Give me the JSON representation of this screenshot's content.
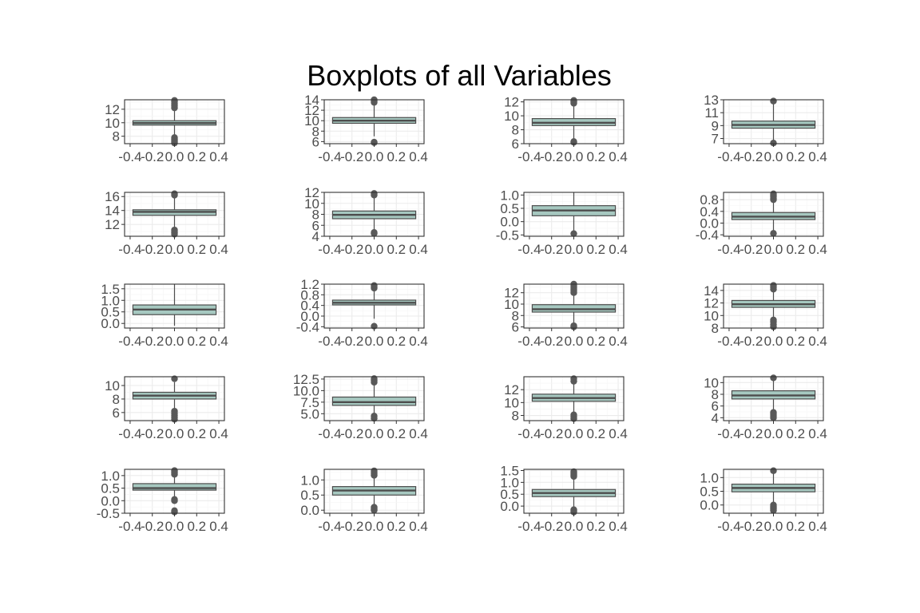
{
  "figure": {
    "title": "Boxplots of all Variables"
  },
  "style": {
    "box_fill": "#a6c8c0",
    "line_color": "#4d4d4d",
    "outlier_color": "#595959",
    "panel_border": "#333333",
    "grid_major": "#ebebeb",
    "grid_minor": "#f5f5f5",
    "tick_text": "#4d4d4d"
  },
  "chart_data": [
    {
      "type": "boxplot",
      "xticks": [
        "-0.4",
        "-0.2",
        "0.0",
        "0.2",
        "0.4"
      ],
      "ylim": [
        6.9,
        13.4
      ],
      "yticks": [
        "8",
        "10",
        "12"
      ],
      "box": {
        "whisker_low": 8.0,
        "q1": 9.65,
        "median": 9.95,
        "q3": 10.3,
        "whisker_high": 12.0
      },
      "outliers": [
        7.0,
        7.2,
        7.4,
        7.6,
        7.8,
        12.2,
        12.5,
        12.8,
        13.1,
        13.3
      ]
    },
    {
      "type": "boxplot",
      "xticks": [
        "-0.4",
        "-0.2",
        "0.0",
        "0.2",
        "0.4"
      ],
      "ylim": [
        5.6,
        14.0
      ],
      "yticks": [
        "6",
        "8",
        "10",
        "12",
        "14"
      ],
      "box": {
        "whisker_low": 7.0,
        "q1": 9.5,
        "median": 10.0,
        "q3": 10.6,
        "whisker_high": 13.0
      },
      "outliers": [
        5.8,
        5.9,
        13.5,
        13.8,
        14.0
      ]
    },
    {
      "type": "boxplot",
      "xticks": [
        "-0.4",
        "-0.2",
        "0.0",
        "0.2",
        "0.4"
      ],
      "ylim": [
        6.0,
        12.3
      ],
      "yticks": [
        "6",
        "8",
        "10",
        "12"
      ],
      "box": {
        "whisker_low": 6.5,
        "q1": 8.6,
        "median": 9.0,
        "q3": 9.6,
        "whisker_high": 11.5
      },
      "outliers": [
        6.2,
        6.3,
        11.8,
        12.0,
        12.2
      ]
    },
    {
      "type": "boxplot",
      "xticks": [
        "-0.4",
        "-0.2",
        "0.0",
        "0.2",
        "0.4"
      ],
      "ylim": [
        6.2,
        13.0
      ],
      "yticks": [
        "7",
        "9",
        "11",
        "13"
      ],
      "box": {
        "whisker_low": 6.6,
        "q1": 8.6,
        "median": 9.1,
        "q3": 9.7,
        "whisker_high": 12.6
      },
      "outliers": [
        6.3,
        12.8
      ]
    },
    {
      "type": "boxplot",
      "xticks": [
        "-0.4",
        "-0.2",
        "0.0",
        "0.2",
        "0.4"
      ],
      "ylim": [
        10.3,
        16.6
      ],
      "yticks": [
        "12",
        "14",
        "16"
      ],
      "box": {
        "whisker_low": 11.5,
        "q1": 13.3,
        "median": 13.8,
        "q3": 14.1,
        "whisker_high": 16.0
      },
      "outliers": [
        10.6,
        10.8,
        11.0,
        11.2,
        16.2,
        16.4
      ]
    },
    {
      "type": "boxplot",
      "xticks": [
        "-0.4",
        "-0.2",
        "0.0",
        "0.2",
        "0.4"
      ],
      "ylim": [
        4.0,
        12.0
      ],
      "yticks": [
        "4",
        "6",
        "8",
        "10",
        "12"
      ],
      "box": {
        "whisker_low": 5.0,
        "q1": 7.2,
        "median": 7.9,
        "q3": 8.6,
        "whisker_high": 11.0
      },
      "outliers": [
        4.5,
        4.7,
        11.5,
        11.8
      ]
    },
    {
      "type": "boxplot",
      "xticks": [
        "-0.4",
        "-0.2",
        "0.0",
        "0.2",
        "0.4"
      ],
      "ylim": [
        -0.55,
        1.1
      ],
      "yticks": [
        "-0.5",
        "0.0",
        "0.5",
        "1.0"
      ],
      "box": {
        "whisker_low": -0.4,
        "q1": 0.22,
        "median": 0.42,
        "q3": 0.6,
        "whisker_high": 1.1
      },
      "outliers": [
        -0.45
      ]
    },
    {
      "type": "boxplot",
      "xticks": [
        "-0.4",
        "-0.2",
        "0.0",
        "0.2",
        "0.4"
      ],
      "ylim": [
        -0.45,
        1.05
      ],
      "yticks": [
        "-0.4",
        "0.0",
        "0.4",
        "0.8"
      ],
      "box": {
        "whisker_low": -0.25,
        "q1": 0.12,
        "median": 0.22,
        "q3": 0.36,
        "whisker_high": 0.75
      },
      "outliers": [
        -0.35,
        0.8,
        0.85,
        0.9,
        0.95,
        1.0
      ]
    },
    {
      "type": "boxplot",
      "xticks": [
        "-0.4",
        "-0.2",
        "0.0",
        "0.2",
        "0.4"
      ],
      "ylim": [
        -0.2,
        1.7
      ],
      "yticks": [
        "0.0",
        "0.5",
        "1.0",
        "1.5"
      ],
      "box": {
        "whisker_low": -0.1,
        "q1": 0.38,
        "median": 0.6,
        "q3": 0.8,
        "whisker_high": 1.7
      },
      "outliers": []
    },
    {
      "type": "boxplot",
      "xticks": [
        "-0.4",
        "-0.2",
        "0.0",
        "0.2",
        "0.4"
      ],
      "ylim": [
        -0.45,
        1.2
      ],
      "yticks": [
        "-0.4",
        "0.0",
        "0.4",
        "0.8",
        "1.2"
      ],
      "box": {
        "whisker_low": -0.1,
        "q1": 0.42,
        "median": 0.5,
        "q3": 0.6,
        "whisker_high": 1.0
      },
      "outliers": [
        -0.38,
        1.05,
        1.1,
        1.15
      ]
    },
    {
      "type": "boxplot",
      "xticks": [
        "-0.4",
        "-0.2",
        "0.0",
        "0.2",
        "0.4"
      ],
      "ylim": [
        5.8,
        13.5
      ],
      "yticks": [
        "6",
        "8",
        "10",
        "12"
      ],
      "box": {
        "whisker_low": 6.5,
        "q1": 8.6,
        "median": 9.1,
        "q3": 9.9,
        "whisker_high": 11.8
      },
      "outliers": [
        6.0,
        6.2,
        12.0,
        12.3,
        12.6,
        12.9,
        13.2,
        13.5
      ]
    },
    {
      "type": "boxplot",
      "xticks": [
        "-0.4",
        "-0.2",
        "0.0",
        "0.2",
        "0.4"
      ],
      "ylim": [
        8.0,
        15.0
      ],
      "yticks": [
        "8",
        "10",
        "12",
        "14"
      ],
      "box": {
        "whisker_low": 9.8,
        "q1": 11.3,
        "median": 11.8,
        "q3": 12.4,
        "whisker_high": 14.0
      },
      "outliers": [
        8.2,
        8.6,
        9.0,
        9.3,
        14.2,
        14.5,
        14.8
      ]
    },
    {
      "type": "boxplot",
      "xticks": [
        "-0.4",
        "-0.2",
        "0.0",
        "0.2",
        "0.4"
      ],
      "ylim": [
        4.8,
        11.3
      ],
      "yticks": [
        "6",
        "8",
        "10"
      ],
      "box": {
        "whisker_low": 6.5,
        "q1": 8.0,
        "median": 8.5,
        "q3": 9.0,
        "whisker_high": 10.5
      },
      "outliers": [
        5.0,
        5.3,
        5.6,
        5.9,
        6.2,
        11.0
      ]
    },
    {
      "type": "boxplot",
      "xticks": [
        "-0.4",
        "-0.2",
        "0.0",
        "0.2",
        "0.4"
      ],
      "ylim": [
        3.5,
        13.0
      ],
      "yticks": [
        "5.0",
        "7.5",
        "10.0",
        "12.5"
      ],
      "box": {
        "whisker_low": 5.0,
        "q1": 6.8,
        "median": 7.5,
        "q3": 8.6,
        "whisker_high": 11.5
      },
      "outliers": [
        4.0,
        4.5,
        11.8,
        12.2,
        12.6
      ]
    },
    {
      "type": "boxplot",
      "xticks": [
        "-0.4",
        "-0.2",
        "0.0",
        "0.2",
        "0.4"
      ],
      "ylim": [
        7.2,
        14.0
      ],
      "yticks": [
        "8",
        "10",
        "12"
      ],
      "box": {
        "whisker_low": 8.5,
        "q1": 10.2,
        "median": 10.7,
        "q3": 11.3,
        "whisker_high": 13.0
      },
      "outliers": [
        7.5,
        7.8,
        8.1,
        13.3,
        13.7
      ]
    },
    {
      "type": "boxplot",
      "xticks": [
        "-0.4",
        "-0.2",
        "0.0",
        "0.2",
        "0.4"
      ],
      "ylim": [
        3.5,
        11.0
      ],
      "yticks": [
        "4",
        "6",
        "8",
        "10"
      ],
      "box": {
        "whisker_low": 5.0,
        "q1": 7.2,
        "median": 7.8,
        "q3": 8.6,
        "whisker_high": 10.5
      },
      "outliers": [
        4.0,
        4.3,
        4.6,
        4.9,
        10.8
      ]
    },
    {
      "type": "boxplot",
      "xticks": [
        "-0.4",
        "-0.2",
        "0.0",
        "0.2",
        "0.4"
      ],
      "ylim": [
        -0.5,
        1.25
      ],
      "yticks": [
        "-0.5",
        "0.0",
        "0.5",
        "1.0"
      ],
      "box": {
        "whisker_low": 0.1,
        "q1": 0.42,
        "median": 0.5,
        "q3": 0.68,
        "whisker_high": 1.0
      },
      "outliers": [
        -0.45,
        -0.4,
        0.0,
        0.05,
        1.05,
        1.1,
        1.15,
        1.2
      ]
    },
    {
      "type": "boxplot",
      "xticks": [
        "-0.4",
        "-0.2",
        "0.0",
        "0.2",
        "0.4"
      ],
      "ylim": [
        -0.1,
        1.35
      ],
      "yticks": [
        "0.0",
        "0.5",
        "1.0"
      ],
      "box": {
        "whisker_low": 0.2,
        "q1": 0.5,
        "median": 0.65,
        "q3": 0.78,
        "whisker_high": 1.1
      },
      "outliers": [
        0.0,
        0.03,
        0.06,
        0.1,
        1.15,
        1.2,
        1.25,
        1.3
      ]
    },
    {
      "type": "boxplot",
      "xticks": [
        "-0.4",
        "-0.2",
        "0.0",
        "0.2",
        "0.4"
      ],
      "ylim": [
        -0.3,
        1.55
      ],
      "yticks": [
        "0.0",
        "0.5",
        "1.0",
        "1.5"
      ],
      "box": {
        "whisker_low": -0.1,
        "q1": 0.4,
        "median": 0.55,
        "q3": 0.7,
        "whisker_high": 1.2
      },
      "outliers": [
        -0.25,
        -0.2,
        -0.15,
        1.25,
        1.3,
        1.35,
        1.4,
        1.45
      ]
    },
    {
      "type": "boxplot",
      "xticks": [
        "-0.4",
        "-0.2",
        "0.0",
        "0.2",
        "0.4"
      ],
      "ylim": [
        -0.3,
        1.3
      ],
      "yticks": [
        "0.0",
        "0.5",
        "1.0"
      ],
      "box": {
        "whisker_low": 0.1,
        "q1": 0.48,
        "median": 0.62,
        "q3": 0.76,
        "whisker_high": 1.2
      },
      "outliers": [
        -0.2,
        -0.15,
        -0.1,
        -0.05,
        0.0,
        1.25
      ]
    }
  ]
}
